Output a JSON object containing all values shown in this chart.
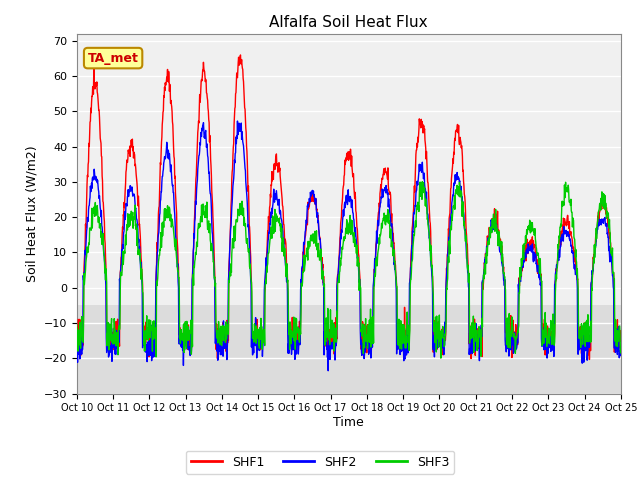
{
  "title": "Alfalfa Soil Heat Flux",
  "ylabel": "Soil Heat Flux (W/m2)",
  "xlabel": "Time",
  "ylim": [
    -30,
    72
  ],
  "yticks": [
    -30,
    -20,
    -10,
    0,
    10,
    20,
    30,
    40,
    50,
    60,
    70
  ],
  "annotation_text": "TA_met",
  "annotation_color": "#cc0000",
  "annotation_bg": "#ffff99",
  "annotation_border": "#bb8800",
  "line_colors": [
    "#ff0000",
    "#0000ff",
    "#00cc00"
  ],
  "line_labels": [
    "SHF1",
    "SHF2",
    "SHF3"
  ],
  "line_width": 1.0,
  "bg_color": "#dcdcdc",
  "upper_bg_color": "#f0f0f0",
  "tick_labels": [
    "Oct 10",
    "Oct 11",
    "Oct 12",
    "Oct 13",
    "Oct 14",
    "Oct 15",
    "Oct 16",
    "Oct 17",
    "Oct 18",
    "Oct 19",
    "Oct 20",
    "Oct 21",
    "Oct 22",
    "Oct 23",
    "Oct 24",
    "Oct 25"
  ],
  "n_points": 1440,
  "day_amps_shf1": [
    58,
    41,
    60,
    61,
    65,
    36,
    26,
    38,
    33,
    47,
    45,
    20,
    13,
    19,
    24
  ],
  "day_amps_shf2": [
    32,
    28,
    39,
    45,
    46,
    26,
    27,
    26,
    28,
    34,
    32,
    18,
    11,
    16,
    20
  ],
  "day_amps_shf3": [
    22,
    20,
    22,
    22,
    22,
    20,
    15,
    18,
    20,
    28,
    28,
    18,
    18,
    28,
    25
  ]
}
